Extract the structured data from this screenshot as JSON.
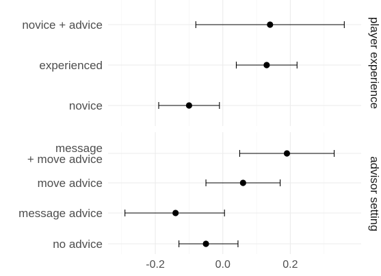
{
  "chart_data": {
    "type": "scatter",
    "subtype": "point-with-error-bars (faceted)",
    "x_ticks": [
      -0.2,
      0.0,
      0.2
    ],
    "x_tick_labels": [
      "-0.2",
      "0.0",
      "0.2"
    ],
    "xlim": [
      -0.34,
      0.41
    ],
    "grid": true,
    "panels": [
      {
        "strip_label": "player experience",
        "rows": [
          {
            "label": "novice + advice",
            "estimate": 0.14,
            "lower": -0.08,
            "upper": 0.36
          },
          {
            "label": "experienced",
            "estimate": 0.13,
            "lower": 0.04,
            "upper": 0.22
          },
          {
            "label": "novice",
            "estimate": -0.1,
            "lower": -0.19,
            "upper": -0.01
          }
        ]
      },
      {
        "strip_label": "advisor setting",
        "rows": [
          {
            "label": "message\n+ move advice",
            "estimate": 0.19,
            "lower": 0.05,
            "upper": 0.33
          },
          {
            "label": "move advice",
            "estimate": 0.06,
            "lower": -0.05,
            "upper": 0.17
          },
          {
            "label": "message advice",
            "estimate": -0.14,
            "lower": -0.29,
            "upper": 0.005
          },
          {
            "label": "no advice",
            "estimate": -0.05,
            "lower": -0.13,
            "upper": 0.045
          }
        ]
      }
    ]
  }
}
